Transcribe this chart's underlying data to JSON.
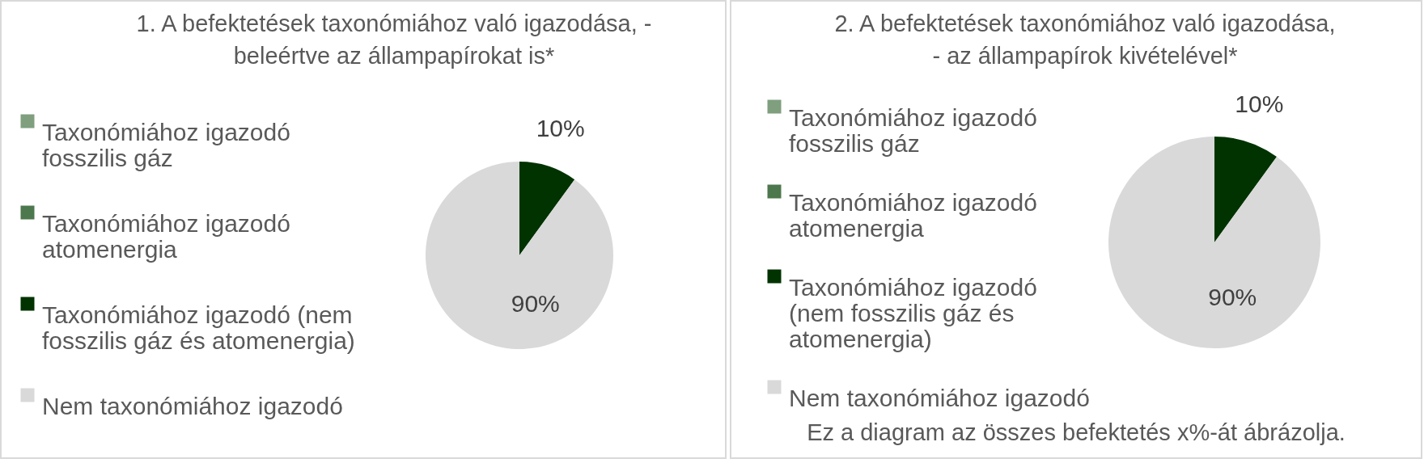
{
  "chart_data": [
    {
      "type": "pie",
      "title": "1. A befektetések taxonómiához való igazodása, - beleértve az állampapírokat is*",
      "categories": [
        "Taxonómiához igazodó fosszilis gáz",
        "Taxonómiához igazodó atomenergia",
        "Taxonómiához igazodó (nem fosszilis gáz és atomenergia)",
        "Nem taxonómiához igazodó"
      ],
      "values": [
        0,
        0,
        10,
        90
      ],
      "colors": [
        "#7f9f7f",
        "#4d774d",
        "#003300",
        "#d9d9d9"
      ],
      "value_labels": [
        null,
        null,
        "10%",
        "90%"
      ],
      "legend": "left"
    },
    {
      "type": "pie",
      "title": "2. A befektetések taxonómiához való igazodása, - az állampapírok kivételével*",
      "categories": [
        "Taxonómiához igazodó fosszilis gáz",
        "Taxonómiához igazodó atomenergia",
        "Taxonómiához igazodó (nem fosszilis gáz és atomenergia)",
        "Nem taxonómiához igazodó"
      ],
      "values": [
        0,
        0,
        10,
        90
      ],
      "colors": [
        "#7f9f7f",
        "#4d774d",
        "#003300",
        "#d9d9d9"
      ],
      "value_labels": [
        null,
        null,
        "10%",
        "90%"
      ],
      "legend": "left",
      "annotations": [
        "Ez a diagram az összes befektetés x%-át ábrázolja."
      ]
    }
  ]
}
